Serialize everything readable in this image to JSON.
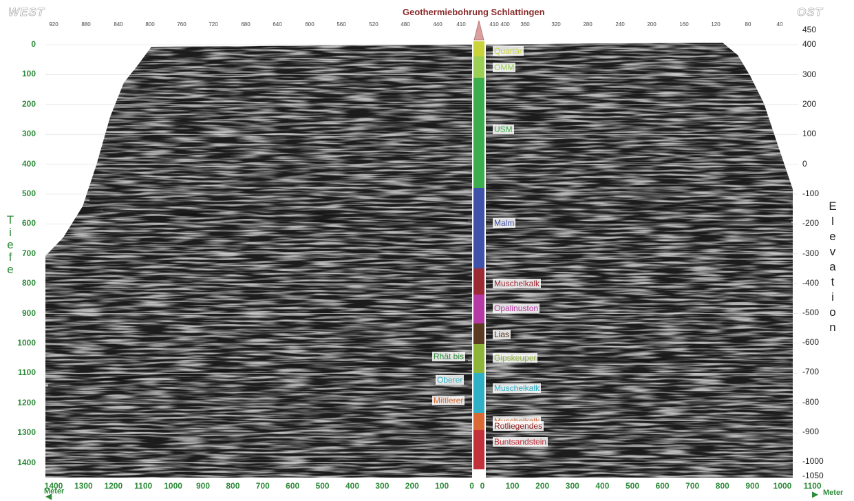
{
  "header": {
    "west": "WEST",
    "east": "OST",
    "title": "Geothermiebohrung Schlattingen"
  },
  "top_distance_ticks_left": [
    "920",
    "880",
    "840",
    "800",
    "760",
    "720",
    "680",
    "640",
    "600",
    "560",
    "520",
    "480",
    "440",
    "410"
  ],
  "top_distance_ticks_right": [
    "410",
    "400",
    "360",
    "320",
    "280",
    "240",
    "200",
    "160",
    "120",
    "80",
    "40"
  ],
  "depth_axis": {
    "label_letters": [
      "T",
      "i",
      "e",
      "f",
      "e"
    ],
    "ticks": [
      "0",
      "100",
      "200",
      "300",
      "400",
      "500",
      "600",
      "700",
      "800",
      "900",
      "1000",
      "1100",
      "1200",
      "1300",
      "1400"
    ]
  },
  "elevation_axis": {
    "label_letters": [
      "E",
      "l",
      "e",
      "v",
      "a",
      "t",
      "i",
      "o",
      "n"
    ],
    "ticks": [
      "450",
      "400",
      "300",
      "200",
      "100",
      "0",
      "-100",
      "-200",
      "-300",
      "-400",
      "-500",
      "-600",
      "-700",
      "-800",
      "-900",
      "-1000",
      "-1050"
    ]
  },
  "bottom_axis": {
    "left_ticks": [
      "1400",
      "1300",
      "1200",
      "1100",
      "1000",
      "900",
      "800",
      "700",
      "600",
      "500",
      "400",
      "300",
      "200",
      "100",
      "0"
    ],
    "right_ticks": [
      "0",
      "100",
      "200",
      "300",
      "400",
      "500",
      "600",
      "700",
      "800",
      "900",
      "1000",
      "1100"
    ],
    "unit_left": "Meter",
    "unit_right": "Meter"
  },
  "borehole": {
    "layers": [
      {
        "name": "Quartär",
        "color": "#c9d33a"
      },
      {
        "name": "OMM",
        "color": "#9ccf55"
      },
      {
        "name": "USM",
        "color": "#3cad4c"
      },
      {
        "name": "Malm",
        "color": "#3f51a8"
      },
      {
        "name": "Muschelkalk",
        "color": "#9c2a35"
      },
      {
        "name": "Opalinuston",
        "color": "#b63aa3"
      },
      {
        "name": "Lias",
        "color": "#5a3a20"
      },
      {
        "name": "Gipskeuper",
        "color": "#8fb43a"
      },
      {
        "name": "Muschelkalk",
        "color": "#2fb0c5"
      },
      {
        "name": "Muschelkalk",
        "color": "#d96a35"
      },
      {
        "name": "Buntsandstein",
        "color": "#c2303a"
      }
    ],
    "left_labels": [
      {
        "text": "Rhät bis",
        "color": "#2e8b3a"
      },
      {
        "text": "Oberer",
        "color": "#2fb0c5"
      },
      {
        "text": "Mittlerer",
        "color": "#d96a35"
      }
    ],
    "extra_label": {
      "text": "Rotliegendes",
      "color": "#8a1a1a"
    }
  },
  "colors": {
    "accent_green": "#2e8b3a",
    "title_red": "#8a2a2a",
    "section_gray": "#8c8c8c"
  }
}
